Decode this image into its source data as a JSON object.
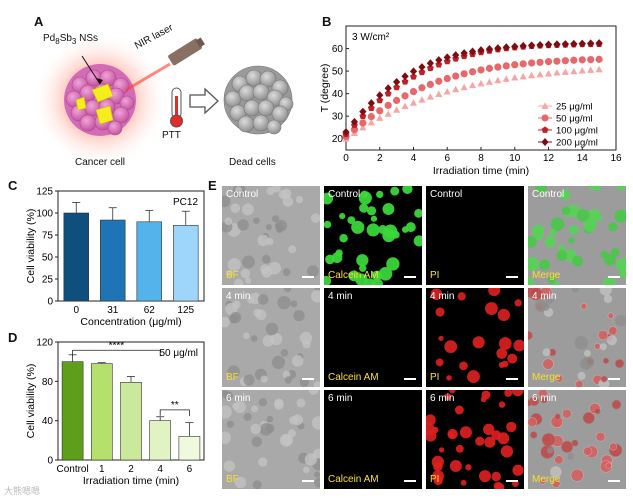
{
  "panel_labels": {
    "a": "A",
    "b": "B",
    "c": "C",
    "d": "D",
    "e": "E"
  },
  "panel_a": {
    "particle_label_main": "Pd",
    "particle_sub1": "8",
    "particle_mid": "Sb",
    "particle_sub2": "3",
    "particle_suffix": " NSs",
    "laser_label": "NIR laser",
    "therapy_label": "PTT",
    "cancer_label": "Cancer cell",
    "dead_label": "Dead cells"
  },
  "chart_data": [
    {
      "id": "B",
      "type": "line",
      "title": "",
      "annotation": "3 W/cm²",
      "xlabel": "Irradiation time (min)",
      "ylabel": "T (degree)",
      "xlim": [
        0,
        16
      ],
      "ylim": [
        15,
        70
      ],
      "xticks": [
        "0",
        "2",
        "4",
        "6",
        "8",
        "10",
        "12",
        "14",
        "16"
      ],
      "yticks": [
        "20",
        "30",
        "40",
        "50",
        "60"
      ],
      "legend_position": "bottom-right",
      "series": [
        {
          "name": "25 μg/ml",
          "color": "#f4a7a7",
          "marker": "triangle",
          "x": [
            0,
            0.5,
            1,
            1.5,
            2,
            2.5,
            3,
            3.5,
            4,
            4.5,
            5,
            5.5,
            6,
            6.5,
            7,
            7.5,
            8,
            8.5,
            9,
            9.5,
            10,
            10.5,
            11,
            11.5,
            12,
            12.5,
            13,
            13.5,
            14,
            14.5,
            15
          ],
          "y": [
            20,
            22.5,
            25,
            27.2,
            29.2,
            31,
            32.8,
            34.4,
            35.9,
            37.3,
            38.6,
            39.8,
            40.9,
            41.9,
            42.8,
            43.7,
            44.5,
            45.2,
            45.9,
            46.5,
            47.1,
            47.6,
            48.1,
            48.5,
            48.9,
            49.3,
            49.6,
            49.9,
            50.2,
            50.5,
            50.7
          ]
        },
        {
          "name": "50 μg/ml",
          "color": "#e8676a",
          "marker": "circle",
          "x": [
            0,
            0.5,
            1,
            1.5,
            2,
            2.5,
            3,
            3.5,
            4,
            4.5,
            5,
            5.5,
            6,
            6.5,
            7,
            7.5,
            8,
            8.5,
            9,
            9.5,
            10,
            10.5,
            11,
            11.5,
            12,
            12.5,
            13,
            13.5,
            14,
            14.5,
            15
          ],
          "y": [
            21,
            24,
            27,
            29.8,
            32.4,
            34.8,
            37,
            39,
            40.9,
            42.6,
            44.1,
            45.5,
            46.7,
            47.8,
            48.8,
            49.7,
            50.5,
            51.2,
            51.8,
            52.3,
            52.8,
            53.2,
            53.6,
            53.9,
            54.2,
            54.4,
            54.6,
            54.8,
            55,
            55.1,
            55.2
          ]
        },
        {
          "name": "100 μg/ml",
          "color": "#c0202a",
          "marker": "pentagon",
          "x": [
            0,
            0.5,
            1,
            1.5,
            2,
            2.5,
            3,
            3.5,
            4,
            4.5,
            5,
            5.5,
            6,
            6.5,
            7,
            7.5,
            8,
            8.5,
            9,
            9.5,
            10,
            10.5,
            11,
            11.5,
            12,
            12.5,
            13,
            13.5,
            14,
            14.5,
            15
          ],
          "y": [
            22,
            26,
            30,
            33.6,
            37,
            40,
            42.8,
            45.3,
            47.5,
            49.5,
            51.3,
            52.9,
            54.3,
            55.5,
            56.6,
            57.5,
            58.3,
            59,
            59.6,
            60.1,
            60.5,
            60.8,
            61.1,
            61.3,
            61.5,
            61.6,
            61.7,
            61.8,
            61.9,
            62,
            62
          ]
        },
        {
          "name": "200 μg/ml",
          "color": "#7d0d12",
          "marker": "diamond",
          "x": [
            0,
            0.5,
            1,
            1.5,
            2,
            2.5,
            3,
            3.5,
            4,
            4.5,
            5,
            5.5,
            6,
            6.5,
            7,
            7.5,
            8,
            8.5,
            9,
            9.5,
            10,
            10.5,
            11,
            11.5,
            12,
            12.5,
            13,
            13.5,
            14,
            14.5,
            15
          ],
          "y": [
            23,
            27.5,
            32,
            35.8,
            39.3,
            42.4,
            45.2,
            47.7,
            49.9,
            51.8,
            53.5,
            54.9,
            56.1,
            57.1,
            58,
            58.7,
            59.3,
            59.8,
            60.2,
            60.6,
            60.9,
            61.2,
            61.4,
            61.6,
            61.8,
            61.9,
            62,
            62.1,
            62.2,
            62.3,
            62.4
          ]
        }
      ]
    },
    {
      "id": "C",
      "type": "bar",
      "annotation": "PC12",
      "xlabel": "Concentration (μg/ml)",
      "ylabel": "Cell viability (%)",
      "ylim": [
        0,
        125
      ],
      "yticks": [
        "0",
        "25",
        "50",
        "75",
        "100",
        "125"
      ],
      "categories": [
        "0",
        "31",
        "62",
        "125"
      ],
      "values": [
        100,
        92,
        90,
        86
      ],
      "errors": [
        12,
        14,
        13,
        16
      ],
      "colors": [
        "#0f4f7d",
        "#1f74b5",
        "#55b3ec",
        "#9ed6fb"
      ]
    },
    {
      "id": "D",
      "type": "bar",
      "annotation": "50 μg/ml",
      "xlabel": "Irradiation time (min)",
      "ylabel": "Cell viability (%)",
      "ylim": [
        0,
        120
      ],
      "yticks": [
        "0",
        "40",
        "80",
        "120"
      ],
      "categories": [
        "Control",
        "1",
        "2",
        "4",
        "6"
      ],
      "values": [
        100,
        98,
        79,
        40,
        24
      ],
      "errors": [
        7,
        1,
        6,
        4,
        14
      ],
      "colors": [
        "#5e9e1a",
        "#b6e06e",
        "#cbe99c",
        "#e1f3c3",
        "#eef9de"
      ],
      "significance": [
        {
          "from": "Control",
          "to": "4",
          "label": "****"
        },
        {
          "from": "4",
          "to": "6",
          "label": "**"
        }
      ]
    }
  ],
  "panel_e": {
    "columns": [
      "BF",
      "Calcein AM",
      "PI",
      "Merge"
    ],
    "rows": [
      "Control",
      "4 min",
      "6 min"
    ]
  },
  "watermark": "大熊嗯嗯"
}
